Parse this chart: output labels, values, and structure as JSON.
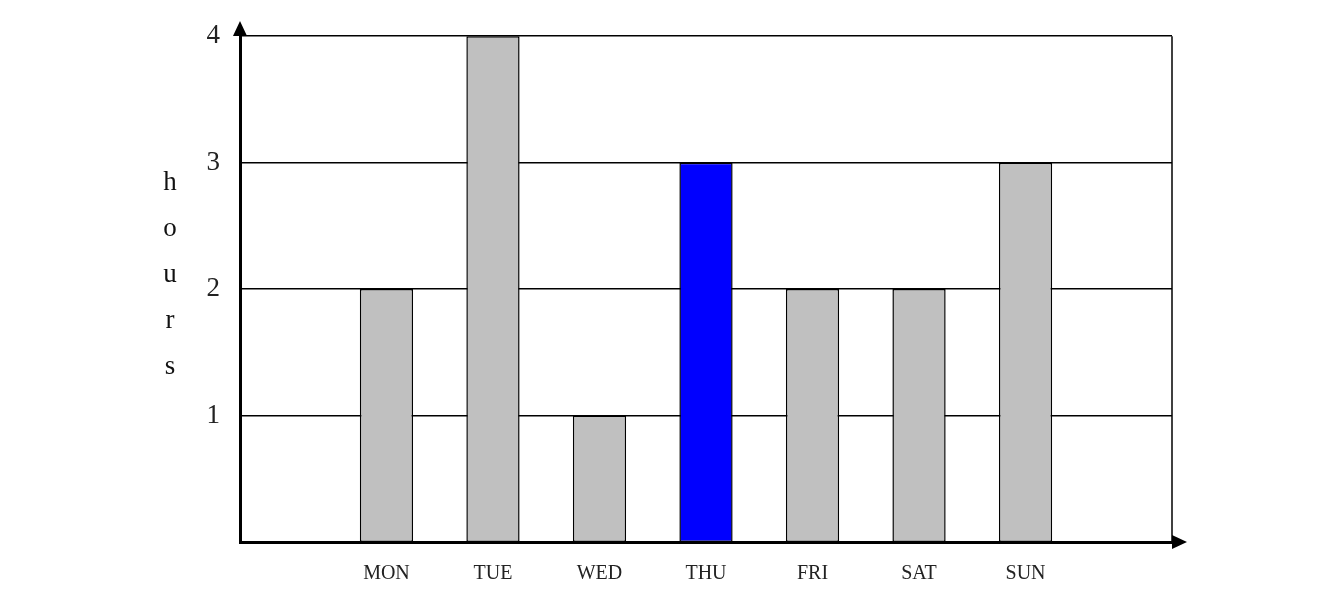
{
  "chart_data": {
    "type": "bar",
    "ylabel": "hours",
    "categories": [
      "MON",
      "TUE",
      "WED",
      "THU",
      "FRI",
      "SAT",
      "SUN"
    ],
    "values": [
      2,
      4,
      1,
      3,
      2,
      2,
      3
    ],
    "colors": [
      "#c0c0c0",
      "#c0c0c0",
      "#c0c0c0",
      "#0000ff",
      "#c0c0c0",
      "#c0c0c0",
      "#c0c0c0"
    ],
    "ylim": [
      0,
      4
    ],
    "yticks": [
      1,
      2,
      3,
      4
    ],
    "grid": "y"
  }
}
